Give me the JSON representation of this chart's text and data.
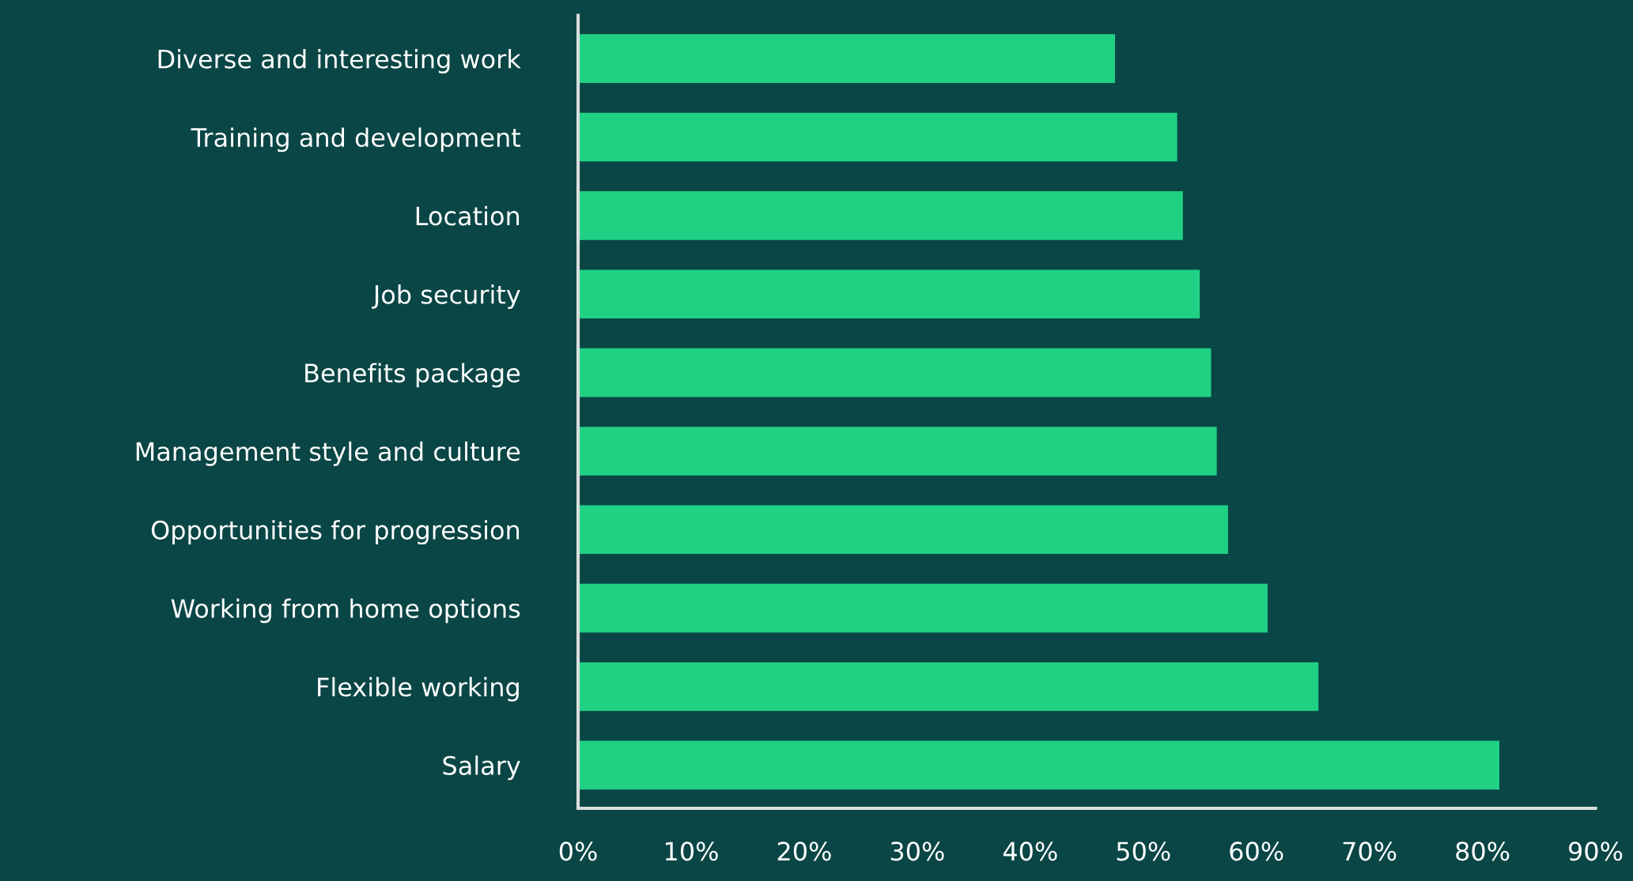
{
  "chart_data": {
    "type": "bar",
    "orientation": "horizontal",
    "categories": [
      "Diverse and interesting work",
      "Training and development",
      "Location",
      "Job security",
      "Benefits package",
      "Management style and culture",
      "Opportunities for progression",
      "Working from home options",
      "Flexible working",
      "Salary"
    ],
    "values": [
      47.5,
      53,
      53.5,
      55,
      56,
      56.5,
      57.5,
      61,
      65.5,
      81.5
    ],
    "color": "#20d184",
    "xlim": [
      0,
      90
    ],
    "xticks": [
      {
        "value": 0,
        "label": "0%"
      },
      {
        "value": 10,
        "label": "10%"
      },
      {
        "value": 20,
        "label": "20%"
      },
      {
        "value": 30,
        "label": "30%"
      },
      {
        "value": 40,
        "label": "40%"
      },
      {
        "value": 50,
        "label": "50%"
      },
      {
        "value": 60,
        "label": "60%"
      },
      {
        "value": 70,
        "label": "70%"
      },
      {
        "value": 80,
        "label": "80%"
      },
      {
        "value": 90,
        "label": "90%"
      }
    ],
    "grid": false,
    "legend": false
  }
}
